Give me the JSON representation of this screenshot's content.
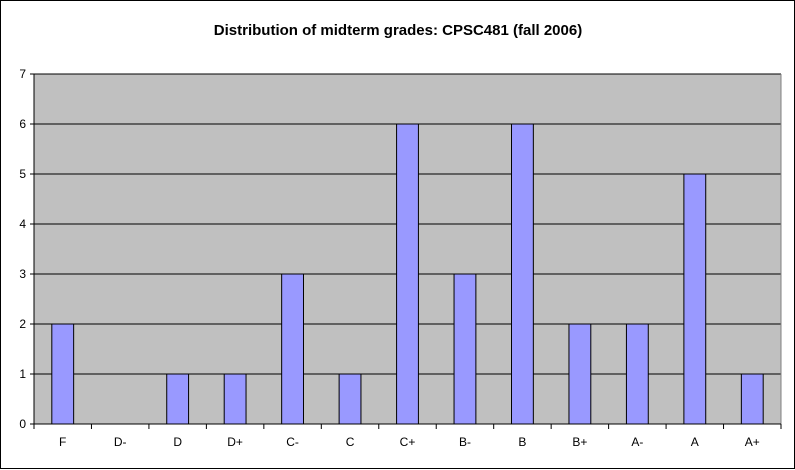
{
  "chart_data": {
    "type": "bar",
    "title": "Distribution of midterm grades: CPSC481 (fall 2006)",
    "xlabel": "",
    "ylabel": "",
    "categories": [
      "F",
      "D-",
      "D",
      "D+",
      "C-",
      "C",
      "C+",
      "B-",
      "B",
      "B+",
      "A-",
      "A",
      "A+"
    ],
    "values": [
      2,
      0,
      1,
      1,
      3,
      1,
      6,
      3,
      6,
      2,
      2,
      5,
      1
    ],
    "ylim": [
      0,
      7
    ],
    "yticks": [
      0,
      1,
      2,
      3,
      4,
      5,
      6,
      7
    ],
    "grid": true,
    "legend": "none",
    "colors": {
      "bar_fill": "#9999ff",
      "bar_stroke": "#000000",
      "plot_bg": "#c0c0c0",
      "grid": "#000000"
    }
  }
}
